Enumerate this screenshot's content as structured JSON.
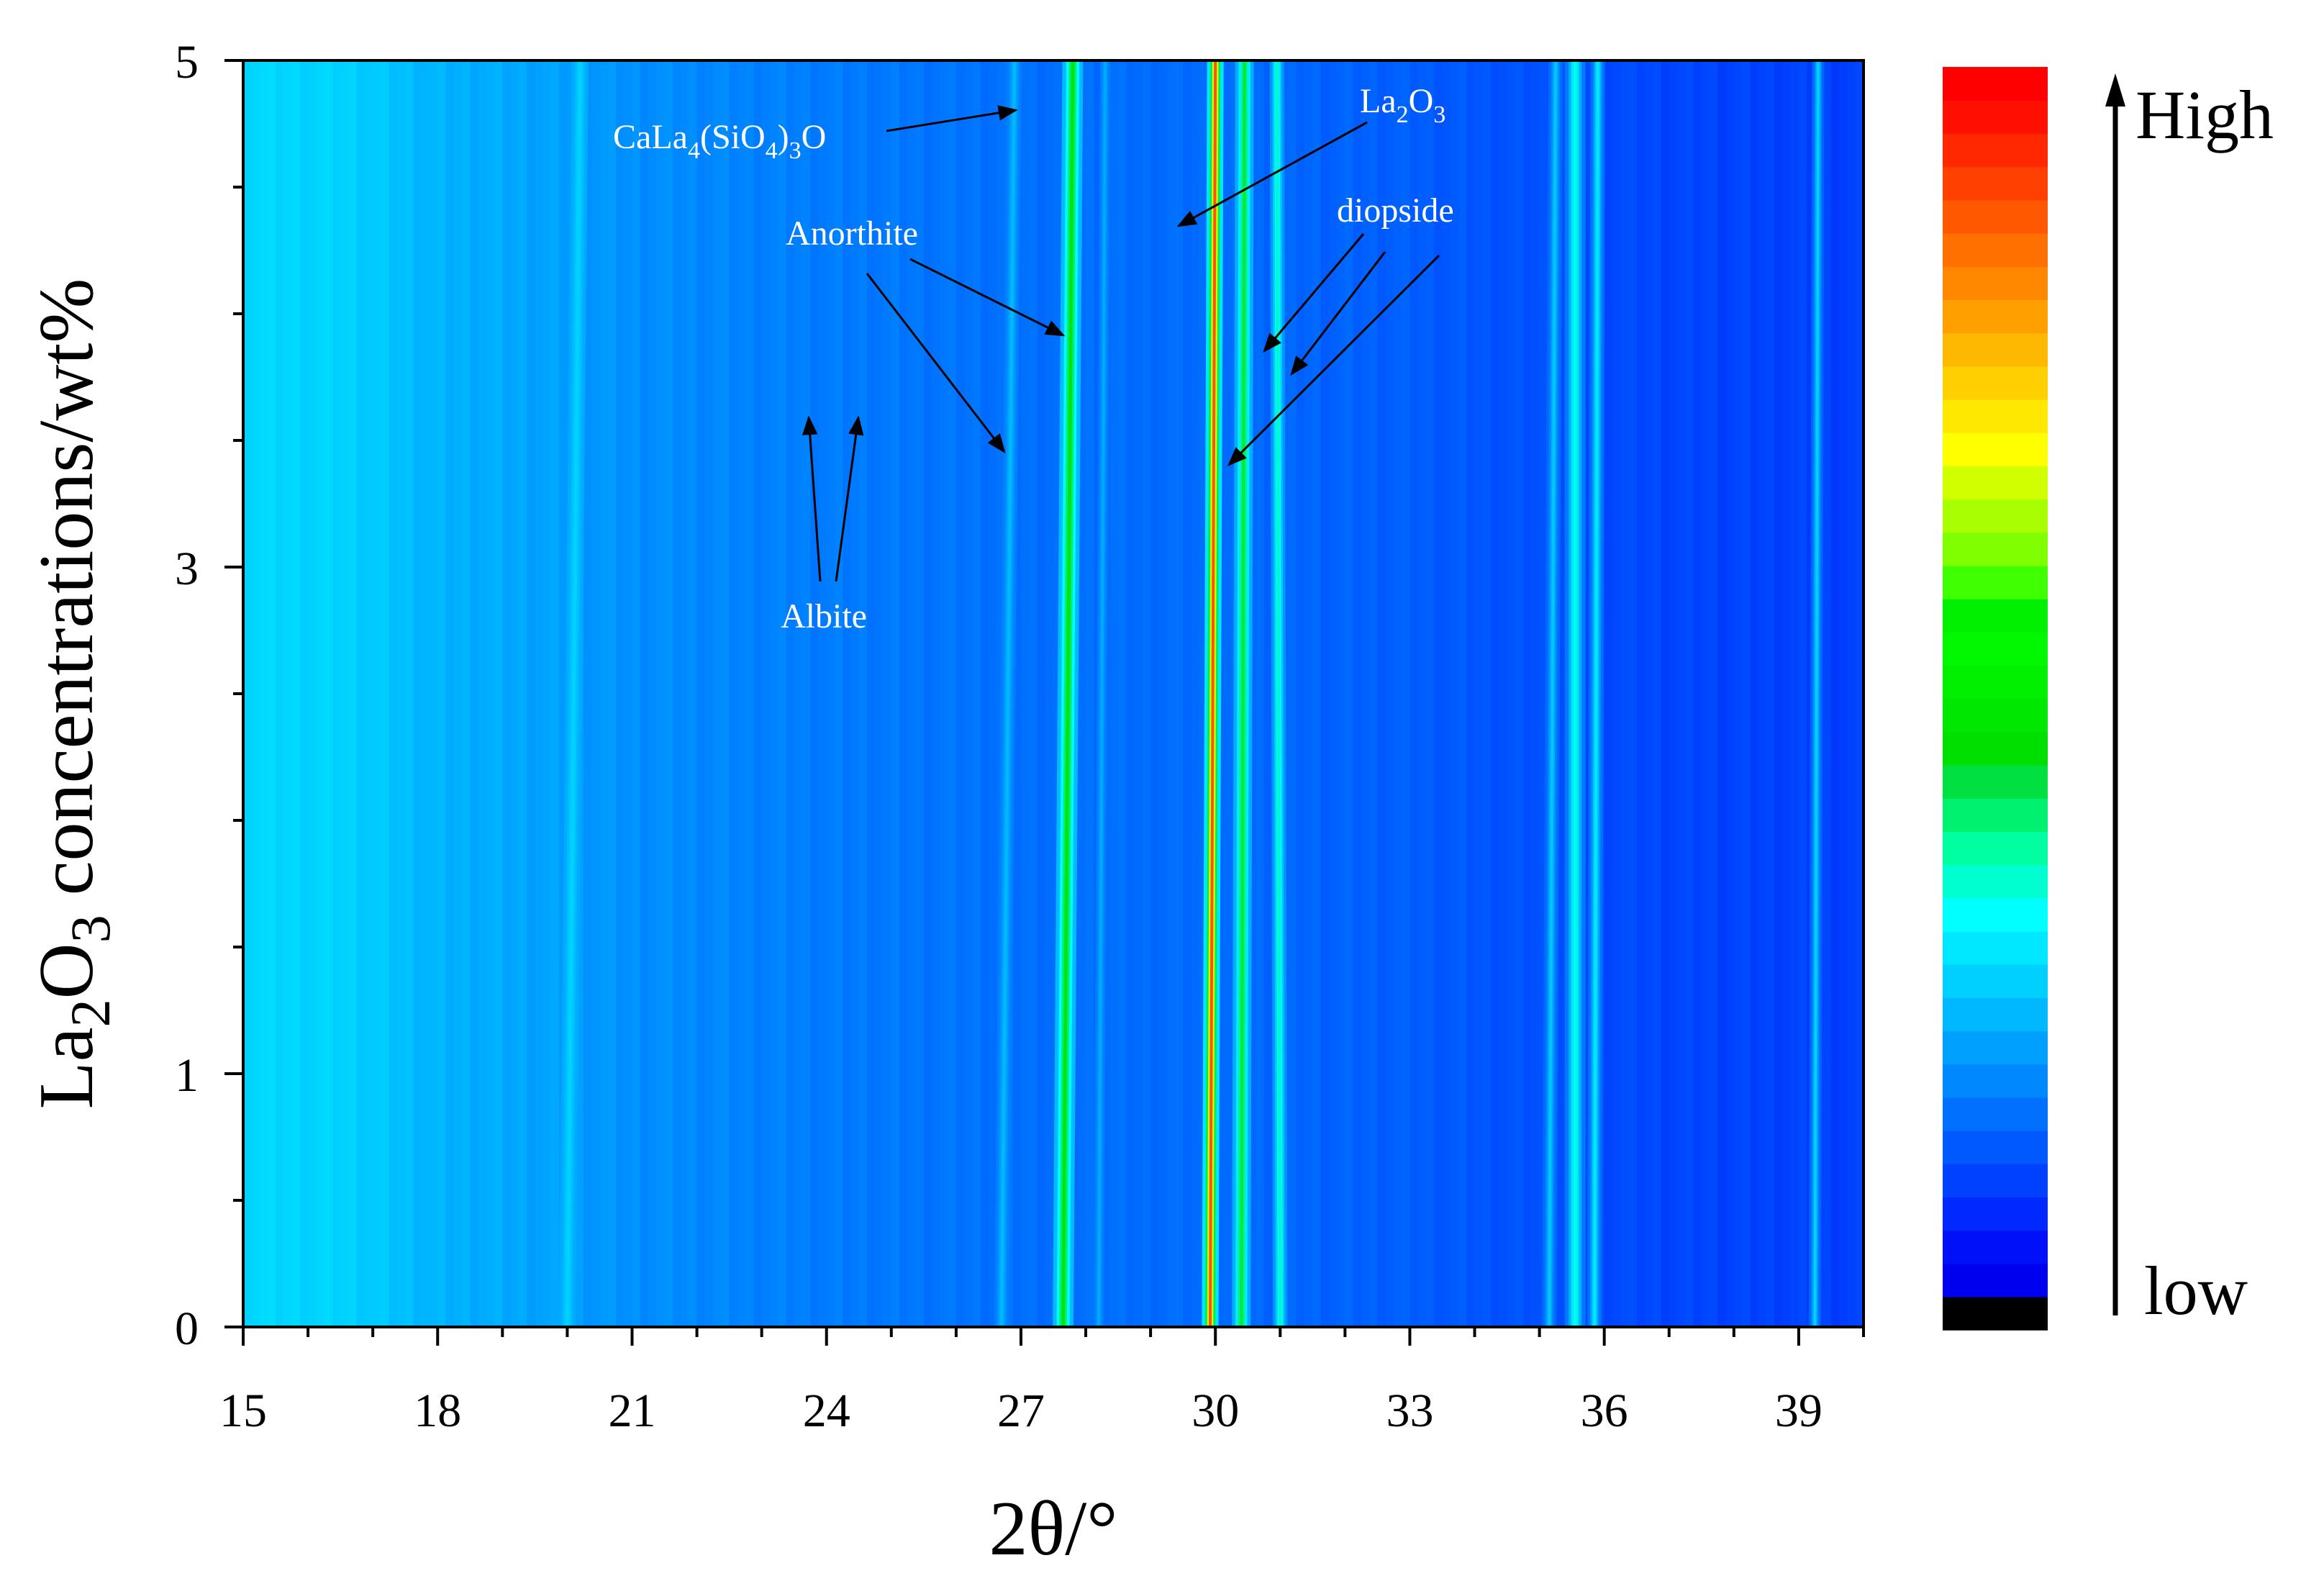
{
  "chart_data": {
    "type": "heatmap",
    "title": "",
    "xlabel": "2θ/°",
    "ylabel_parts": {
      "base": "La",
      "sub1": "2",
      "mid": "O",
      "sub2": "3",
      "rest": " concentrations/wt%"
    },
    "xlim": [
      15,
      40
    ],
    "ylim": [
      0,
      5
    ],
    "x_ticks": [
      15,
      18,
      21,
      24,
      27,
      30,
      33,
      36,
      39
    ],
    "x_tick_labels": [
      "15",
      "18",
      "21",
      "24",
      "27",
      "30",
      "33",
      "36",
      "39"
    ],
    "y_ticks": [
      0,
      1,
      3,
      5
    ],
    "y_tick_labels": [
      "0",
      "1",
      "3",
      "5"
    ],
    "background_intensity": [
      {
        "x": 15.0,
        "v": 0.33
      },
      {
        "x": 16.5,
        "v": 0.32
      },
      {
        "x": 18.0,
        "v": 0.27
      },
      {
        "x": 19.5,
        "v": 0.25
      },
      {
        "x": 21.0,
        "v": 0.22
      },
      {
        "x": 24.0,
        "v": 0.19
      },
      {
        "x": 27.0,
        "v": 0.17
      },
      {
        "x": 30.0,
        "v": 0.16
      },
      {
        "x": 33.0,
        "v": 0.14
      },
      {
        "x": 34.5,
        "v": 0.12
      },
      {
        "x": 37.0,
        "v": 0.1
      },
      {
        "x": 40.0,
        "v": 0.09
      }
    ],
    "peaks": [
      {
        "x0": 20.0,
        "x5": 20.2,
        "width": 0.08,
        "intensity": 0.32
      },
      {
        "x0": 26.7,
        "x5": 26.9,
        "width": 0.07,
        "intensity": 0.28
      },
      {
        "x0": 27.65,
        "x5": 27.8,
        "width": 0.1,
        "intensity": 0.62
      },
      {
        "x0": 28.2,
        "x5": 28.3,
        "width": 0.05,
        "intensity": 0.26
      },
      {
        "x0": 29.92,
        "x5": 30.0,
        "width": 0.08,
        "intensity": 0.95
      },
      {
        "x0": 30.4,
        "x5": 30.45,
        "width": 0.09,
        "intensity": 0.58
      },
      {
        "x0": 31.0,
        "x5": 30.95,
        "width": 0.07,
        "intensity": 0.45
      },
      {
        "x0": 35.15,
        "x5": 35.25,
        "width": 0.07,
        "intensity": 0.3
      },
      {
        "x0": 35.55,
        "x5": 35.55,
        "width": 0.1,
        "intensity": 0.42
      },
      {
        "x0": 35.85,
        "x5": 35.9,
        "width": 0.07,
        "intensity": 0.36
      },
      {
        "x0": 39.25,
        "x5": 39.3,
        "width": 0.06,
        "intensity": 0.32
      }
    ],
    "annotations": [
      {
        "id": "calasio",
        "label_parts": [
          "CaLa",
          "4",
          "(SiO",
          "4",
          ")",
          "3",
          "O"
        ],
        "arrows_to": [
          [
            27.0,
            4.7
          ]
        ]
      },
      {
        "id": "la2o3",
        "label_parts": [
          "La",
          "2",
          "O",
          "3"
        ],
        "arrows_to": [
          [
            29.3,
            4.35
          ]
        ]
      },
      {
        "id": "anorthite",
        "label": "Anorthite",
        "arrows_to": [
          [
            27.7,
            3.93
          ],
          [
            26.9,
            3.45
          ]
        ]
      },
      {
        "id": "diopside",
        "label": "diopside",
        "arrows_to": [
          [
            30.7,
            3.85
          ],
          [
            31.2,
            3.75
          ],
          [
            30.2,
            3.43
          ]
        ]
      },
      {
        "id": "albite",
        "label": "Albite",
        "arrows_to": [
          [
            23.9,
            3.6
          ],
          [
            24.6,
            3.6
          ]
        ]
      }
    ],
    "colorbar": {
      "high_label": "High",
      "low_label": "low",
      "colors": [
        "#000000",
        "#0000f0",
        "#0010f8",
        "#0028ff",
        "#0040ff",
        "#0058ff",
        "#0070ff",
        "#0088ff",
        "#00a0ff",
        "#00b8ff",
        "#00d0ff",
        "#00e8ff",
        "#00ffff",
        "#00ffd0",
        "#00ffa0",
        "#00f070",
        "#00e040",
        "#00e000",
        "#00e800",
        "#00f000",
        "#00f800",
        "#00f000",
        "#40ff00",
        "#80ff00",
        "#a8ff00",
        "#d0ff00",
        "#ffff00",
        "#ffe800",
        "#ffd000",
        "#ffb800",
        "#ffa000",
        "#ff8800",
        "#ff7000",
        "#ff5800",
        "#ff4000",
        "#ff2800",
        "#ff1000",
        "#ff0000"
      ]
    }
  }
}
